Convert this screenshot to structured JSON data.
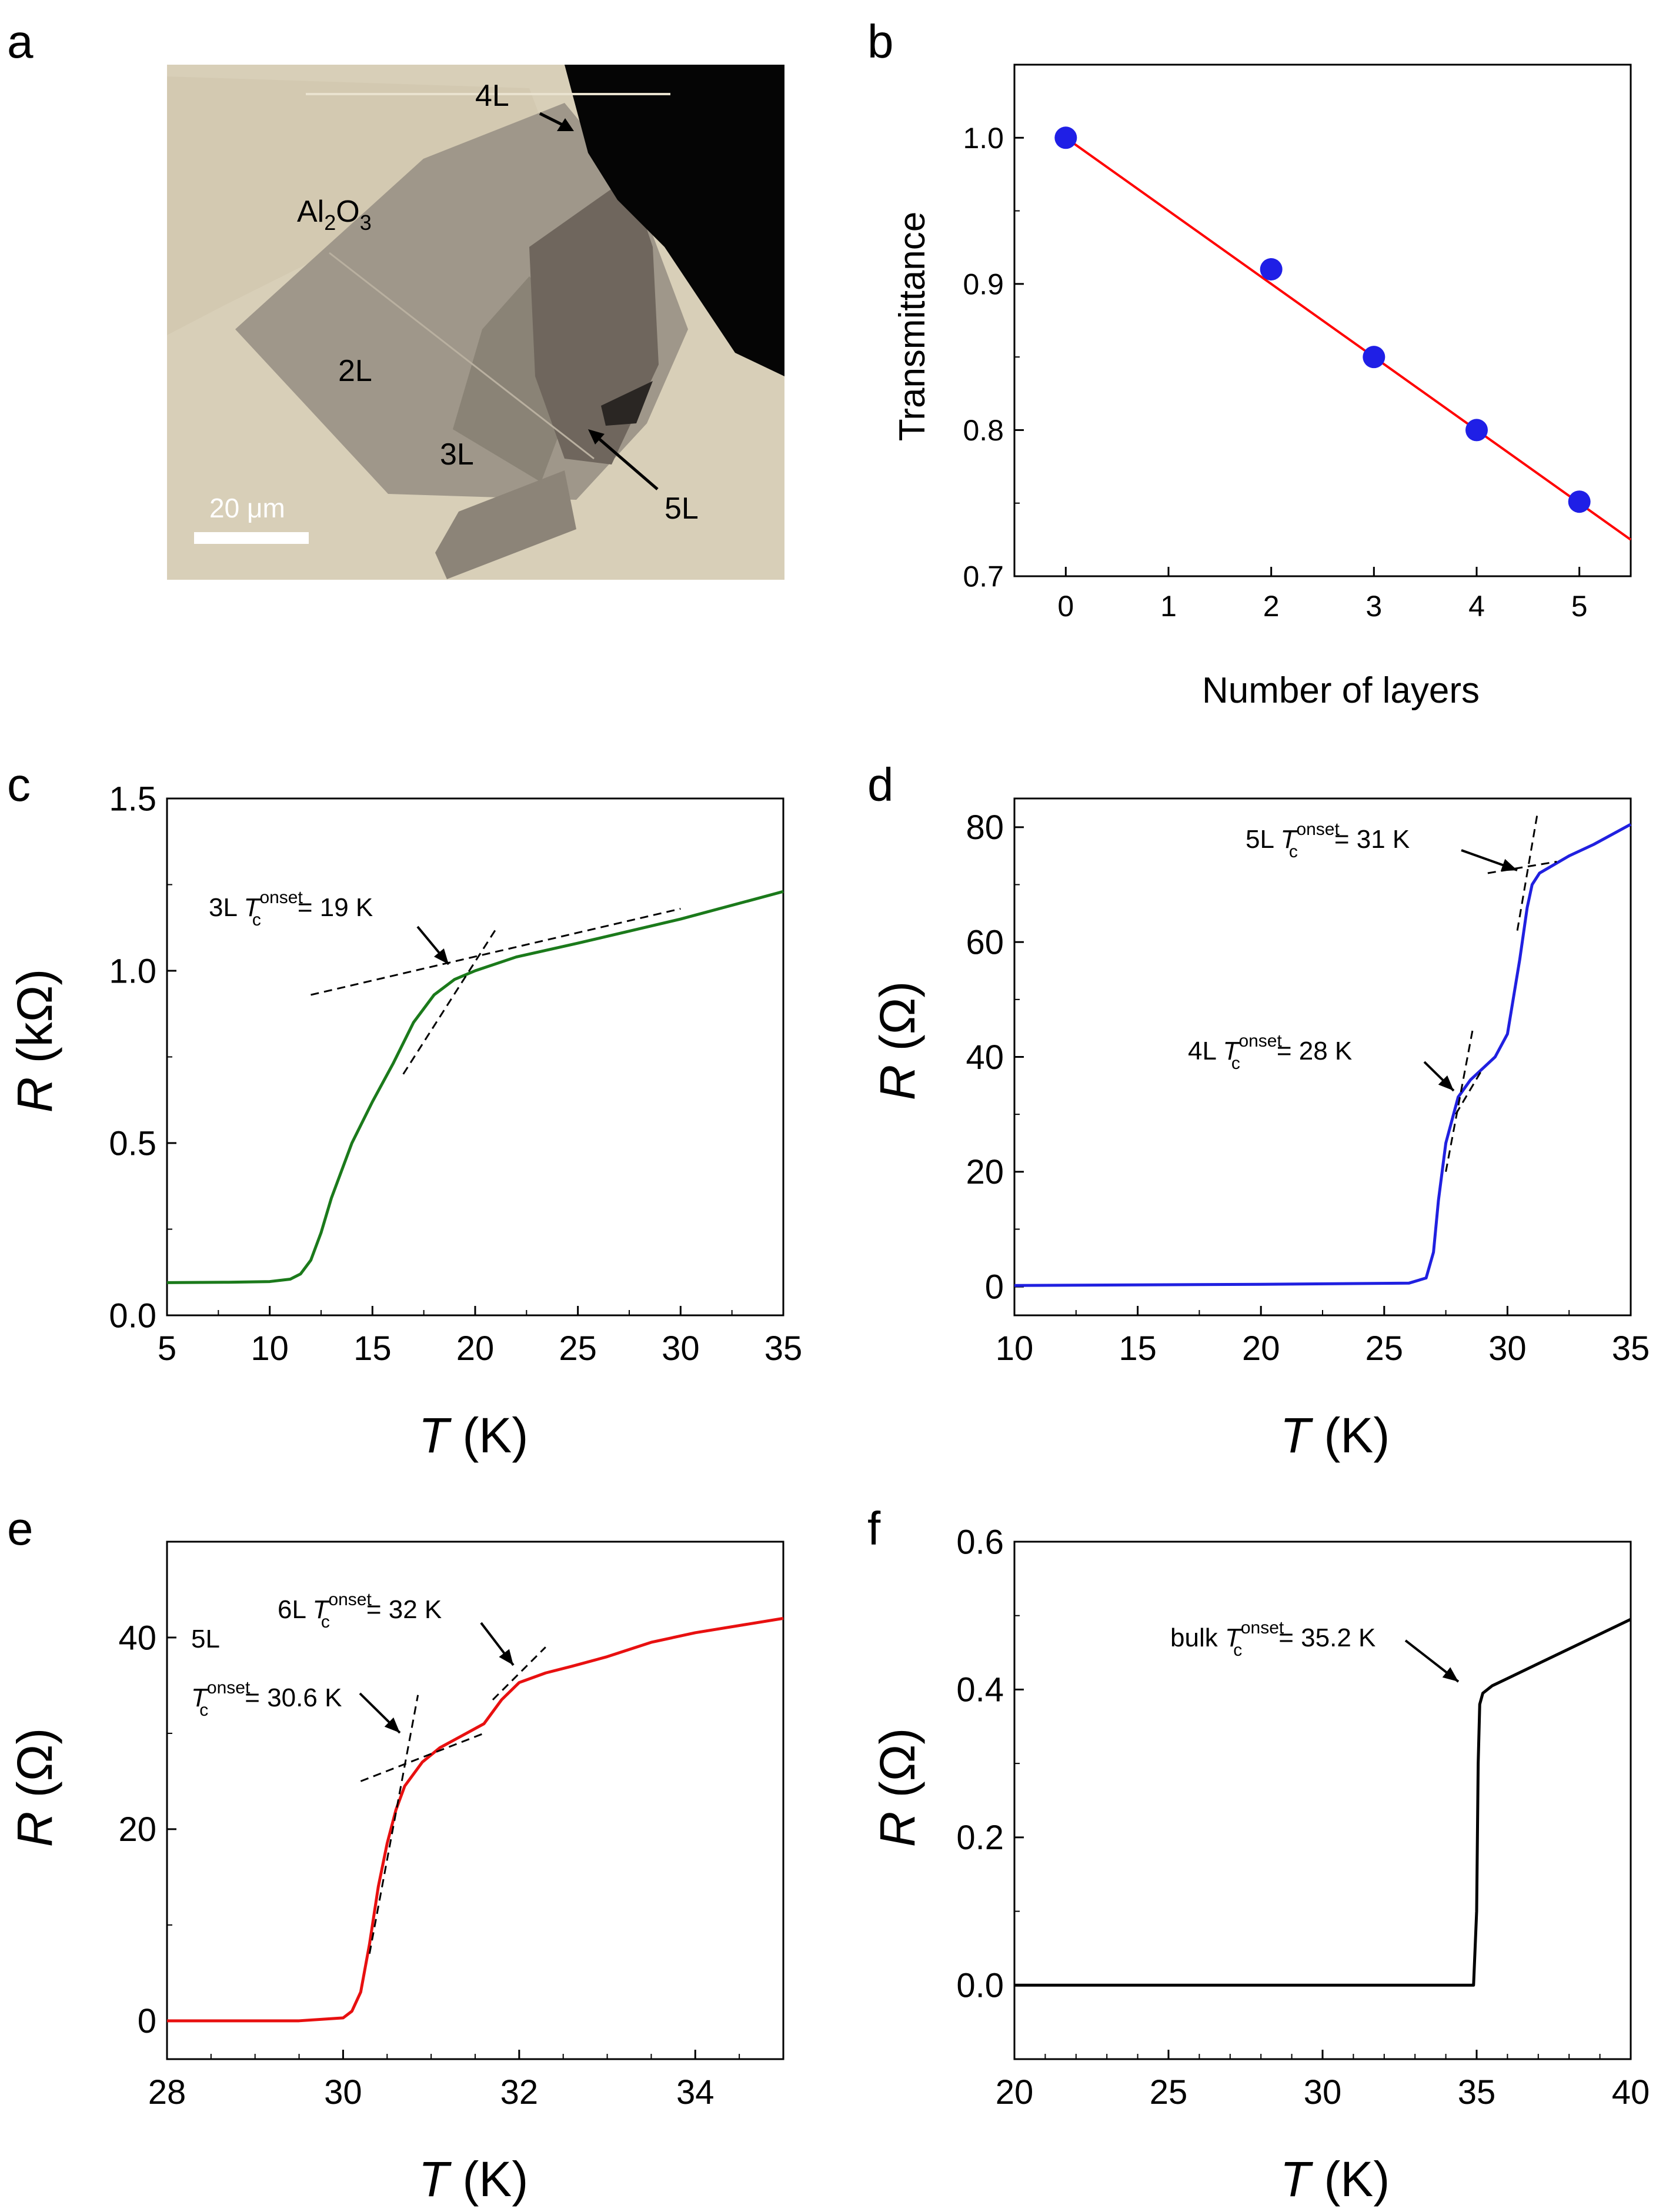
{
  "panel_letters": {
    "a": "a",
    "b": "b",
    "c": "c",
    "d": "d",
    "e": "e",
    "f": "f"
  },
  "micrograph": {
    "labels": {
      "al2o3_base": "Al",
      "al2o3_sub1": "2",
      "al2o3_mid": "O",
      "al2o3_sub2": "3",
      "l2": "2L",
      "l3": "3L",
      "l4": "4L",
      "l5": "5L"
    },
    "scale_bar": "20 μm",
    "colors": {
      "substrate": "#d8cfb8",
      "flake": "#8f877b",
      "dark": "#050505"
    }
  },
  "chart_data": [
    {
      "panel": "b",
      "type": "scatter",
      "xlabel": "Number of layers",
      "ylabel": "Transmittance",
      "xlim": [
        -0.5,
        5.5
      ],
      "ylim": [
        0.7,
        1.05
      ],
      "xticks": [
        0,
        1,
        2,
        3,
        4,
        5
      ],
      "yticks": [
        0.7,
        0.8,
        0.9,
        1.0
      ],
      "ytick_labels": [
        "0.7",
        "0.8",
        "0.9",
        "1.0"
      ],
      "x": [
        0,
        2,
        3,
        4,
        5
      ],
      "y": [
        1.0,
        0.91,
        0.85,
        0.8,
        0.751
      ],
      "fit": {
        "x": [
          0,
          5.5
        ],
        "y": [
          1.0,
          0.725
        ],
        "color": "#ff0000"
      },
      "marker_color": "#1f1fe6"
    },
    {
      "panel": "c",
      "type": "line",
      "xlabel": "T (K)",
      "ylabel": "R (kΩ)",
      "xlim": [
        5,
        35
      ],
      "ylim": [
        0,
        1.5
      ],
      "xticks": [
        5,
        10,
        15,
        20,
        25,
        30,
        35
      ],
      "yticks": [
        0,
        0.5,
        1.0,
        1.5
      ],
      "ytick_labels": [
        "0.0",
        "0.5",
        "1.0",
        "1.5"
      ],
      "series": [
        {
          "color": "#1b7a1b",
          "x": [
            5,
            8,
            10,
            11,
            11.5,
            12,
            12.5,
            13,
            14,
            15,
            16,
            17,
            18,
            19,
            20,
            22,
            25,
            30,
            35
          ],
          "y": [
            0.095,
            0.096,
            0.098,
            0.105,
            0.12,
            0.16,
            0.24,
            0.34,
            0.5,
            0.62,
            0.73,
            0.85,
            0.93,
            0.975,
            1.0,
            1.04,
            1.08,
            1.15,
            1.23
          ]
        }
      ],
      "annotations": [
        {
          "prefix": "3L",
          "suffix": "= 19 K"
        }
      ]
    },
    {
      "panel": "d",
      "type": "line",
      "xlabel": "T (K)",
      "ylabel": "R (Ω)",
      "xlim": [
        10,
        35
      ],
      "ylim": [
        -5,
        85
      ],
      "xticks": [
        10,
        15,
        20,
        25,
        30,
        35
      ],
      "yticks": [
        0,
        20,
        40,
        60,
        80
      ],
      "ytick_labels": [
        "0",
        "20",
        "40",
        "60",
        "80"
      ],
      "series": [
        {
          "color": "#2020e0",
          "x": [
            10,
            20,
            26,
            26.7,
            27,
            27.2,
            27.5,
            28,
            28.5,
            29,
            29.5,
            30,
            30.5,
            30.8,
            31,
            31.3,
            31.7,
            32.5,
            33.5,
            35
          ],
          "y": [
            0.2,
            0.4,
            0.6,
            1.5,
            6,
            15,
            25,
            33,
            36,
            38,
            40,
            44,
            57,
            66,
            70,
            72,
            73,
            75,
            77,
            80.5
          ]
        }
      ],
      "annotations": [
        {
          "prefix": "5L",
          "suffix": "= 31 K"
        },
        {
          "prefix": "4L",
          "suffix": "= 28 K"
        }
      ]
    },
    {
      "panel": "e",
      "type": "line",
      "xlabel": "T (K)",
      "ylabel": "R (Ω)",
      "xlim": [
        28,
        35
      ],
      "ylim": [
        -4,
        50
      ],
      "xticks": [
        28,
        30,
        32,
        34
      ],
      "yticks": [
        0,
        20,
        40
      ],
      "ytick_labels": [
        "0",
        "20",
        "40"
      ],
      "series": [
        {
          "color": "#e81010",
          "x": [
            28,
            29.5,
            30,
            30.1,
            30.2,
            30.3,
            30.4,
            30.5,
            30.6,
            30.7,
            30.9,
            31.1,
            31.4,
            31.6,
            31.8,
            32,
            32.3,
            32.6,
            33,
            33.5,
            34,
            35
          ],
          "y": [
            0,
            0,
            0.3,
            1,
            3,
            8,
            14,
            18.5,
            22,
            24.5,
            27,
            28.5,
            30,
            31,
            33.5,
            35.3,
            36.3,
            37,
            38,
            39.5,
            40.5,
            42
          ]
        }
      ],
      "annotations": [
        {
          "prefix": "6L",
          "suffix": "= 32 K"
        },
        {
          "prefix": "5L",
          "suffix": "= 30.6 K"
        }
      ]
    },
    {
      "panel": "f",
      "type": "line",
      "xlabel": "T (K)",
      "ylabel": "R (Ω)",
      "xlim": [
        20,
        40
      ],
      "ylim": [
        -0.1,
        0.6
      ],
      "xticks": [
        20,
        25,
        30,
        35,
        40
      ],
      "yticks": [
        0,
        0.2,
        0.4,
        0.6
      ],
      "ytick_labels": [
        "0.0",
        "0.2",
        "0.4",
        "0.6"
      ],
      "series": [
        {
          "color": "#000000",
          "x": [
            20,
            30,
            34.9,
            35,
            35.05,
            35.1,
            35.2,
            35.5,
            36,
            37,
            38,
            39,
            40
          ],
          "y": [
            0,
            0,
            0,
            0.1,
            0.3,
            0.38,
            0.395,
            0.405,
            0.415,
            0.435,
            0.455,
            0.475,
            0.495
          ]
        }
      ],
      "annotations": [
        {
          "prefix": "bulk",
          "suffix": "= 35.2 K"
        }
      ]
    }
  ],
  "tc_symbol": {
    "T": "T",
    "sub": "c",
    "sup": "onset"
  }
}
